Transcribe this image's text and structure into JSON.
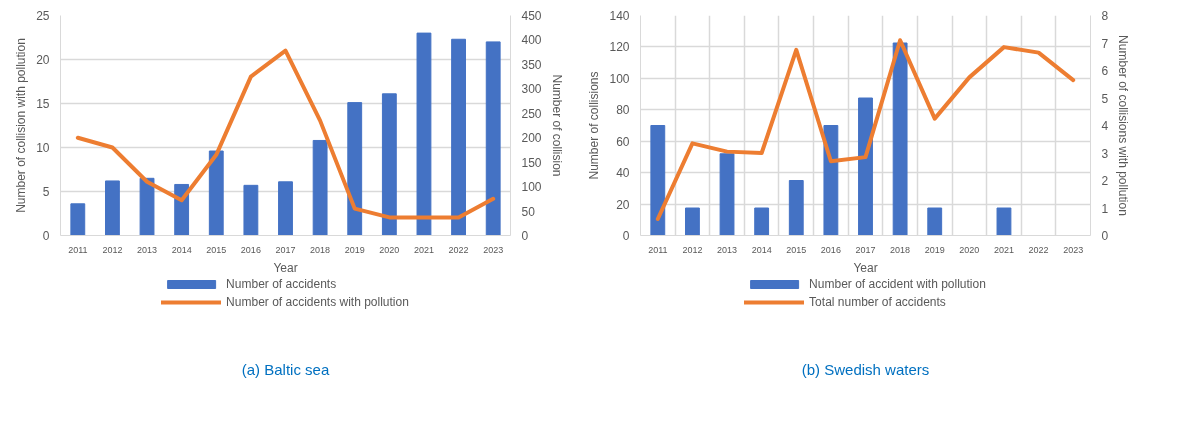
{
  "chart_data": [
    {
      "type": "bar",
      "categories": [
        "2011",
        "2012",
        "2013",
        "2014",
        "2015",
        "2016",
        "2017",
        "2018",
        "2019",
        "2020",
        "2021",
        "2022",
        "2023"
      ],
      "series": [
        {
          "name": "Number of accidents",
          "color": "#4472c4",
          "values": [
            3.6,
            6.2,
            6.5,
            5.8,
            9.6,
            5.7,
            6.1,
            10.8,
            15.1,
            16.1,
            23,
            22.3,
            22
          ]
        },
        {
          "name": "Number of accidents with pollution",
          "type": "line",
          "axis": "y2",
          "color": "#ed7d31",
          "values": [
            200,
            180,
            110,
            72,
            165,
            325,
            378,
            235,
            55,
            37,
            37,
            37,
            75
          ]
        }
      ],
      "ylim": [
        0,
        25
      ],
      "yticks": [
        0,
        5,
        10,
        15,
        20,
        25
      ],
      "y2lim": [
        0,
        450
      ],
      "y2ticks": [
        0,
        50,
        100,
        150,
        200,
        250,
        300,
        350,
        400,
        450
      ],
      "xlabel": "Year",
      "ylabel": "Number of collision with pollution",
      "y2label": "Number of collision",
      "grid": "y",
      "legend": "bottom",
      "annotations": [
        "(a) Baltic sea"
      ]
    },
    {
      "type": "bar",
      "categories": [
        "2011",
        "2012",
        "2013",
        "2014",
        "2015",
        "2016",
        "2017",
        "2018",
        "2019",
        "2020",
        "2021",
        "2022",
        "2023"
      ],
      "series": [
        {
          "name": "Number of accident with pollution",
          "color": "#4472c4",
          "values": [
            70,
            17.5,
            52,
            17.5,
            35,
            70,
            87.5,
            122.5,
            17.5,
            0,
            17.5,
            0,
            0
          ]
        },
        {
          "name": "Total number of accidents",
          "type": "line",
          "axis": "y2",
          "color": "#ed7d31",
          "values": [
            0.6,
            3.35,
            3.05,
            3.0,
            6.75,
            2.7,
            2.85,
            7.1,
            4.25,
            5.75,
            6.85,
            6.65,
            5.65
          ]
        }
      ],
      "ylim": [
        0,
        140
      ],
      "yticks": [
        0,
        20,
        40,
        60,
        80,
        100,
        120,
        140
      ],
      "y2lim": [
        0,
        8
      ],
      "y2ticks": [
        0,
        1,
        2,
        3,
        4,
        5,
        6,
        7,
        8
      ],
      "xlabel": "Year",
      "ylabel": "Number of collisions",
      "y2label": "Number of collisions with pollution",
      "grid": true,
      "legend": "bottom",
      "annotations": [
        "(b) Swedish waters"
      ]
    }
  ]
}
